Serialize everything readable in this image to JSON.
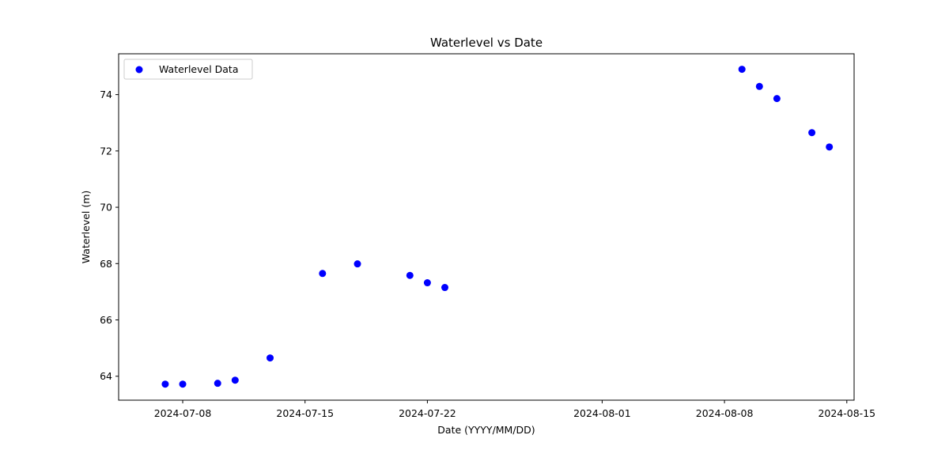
{
  "chart_data": {
    "type": "scatter",
    "title": "Waterlevel vs Date",
    "xlabel": "Date (YYYY/MM/DD)",
    "ylabel": "Waterlevel (m)",
    "grid": false,
    "legend_position": "top-left",
    "x_ticks": [
      "2024-07-08",
      "2024-07-15",
      "2024-07-22",
      "2024-08-01",
      "2024-08-08",
      "2024-08-15"
    ],
    "y_ticks": [
      64,
      66,
      68,
      70,
      72,
      74
    ],
    "xlim": [
      "2024-07-04T08:00",
      "2024-08-15T10:00"
    ],
    "ylim": [
      63.15,
      75.45
    ],
    "series": [
      {
        "name": "Waterlevel Data",
        "color": "#0000ff",
        "points": [
          {
            "x": "2024-07-07",
            "y": 63.72
          },
          {
            "x": "2024-07-08",
            "y": 63.72
          },
          {
            "x": "2024-07-10",
            "y": 63.75
          },
          {
            "x": "2024-07-11",
            "y": 63.86
          },
          {
            "x": "2024-07-13",
            "y": 64.65
          },
          {
            "x": "2024-07-16",
            "y": 67.65
          },
          {
            "x": "2024-07-18",
            "y": 67.99
          },
          {
            "x": "2024-07-21",
            "y": 67.58
          },
          {
            "x": "2024-07-22",
            "y": 67.32
          },
          {
            "x": "2024-07-23",
            "y": 67.15
          },
          {
            "x": "2024-08-09",
            "y": 74.9
          },
          {
            "x": "2024-08-10",
            "y": 74.29
          },
          {
            "x": "2024-08-11",
            "y": 73.86
          },
          {
            "x": "2024-08-13",
            "y": 72.65
          },
          {
            "x": "2024-08-14",
            "y": 72.14
          }
        ]
      }
    ]
  }
}
